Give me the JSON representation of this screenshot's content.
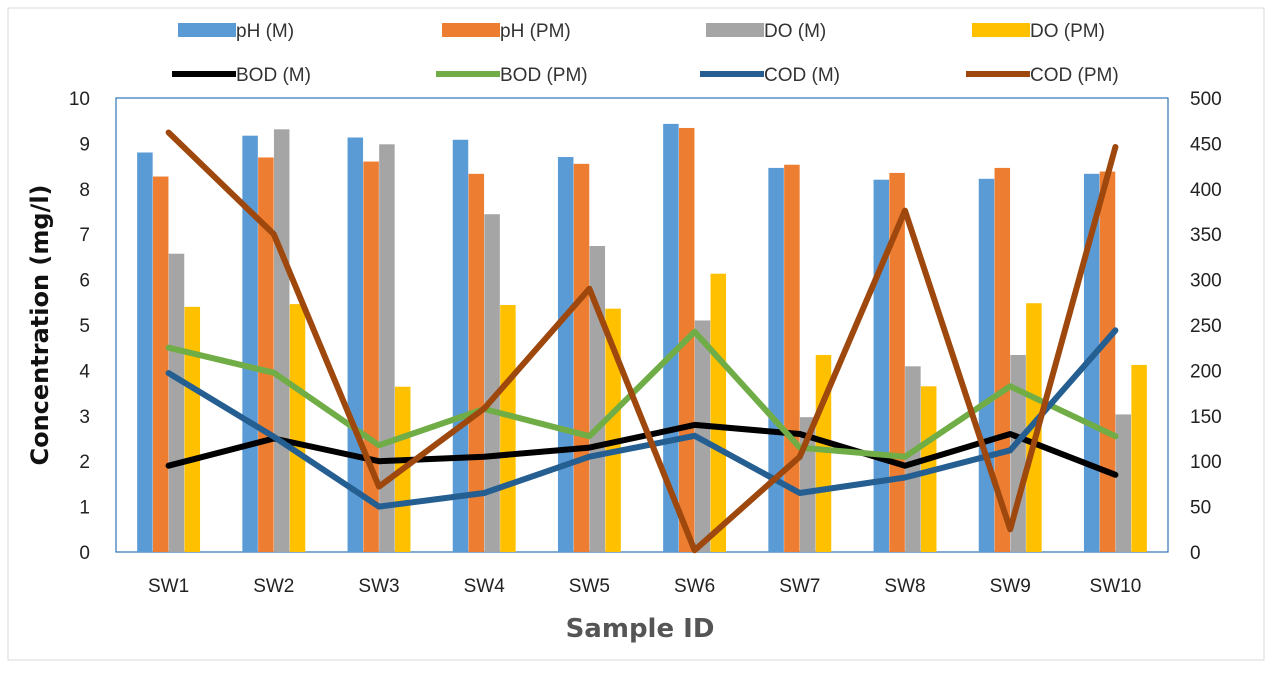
{
  "chart_data": {
    "type": "bar",
    "categories": [
      "SW1",
      "SW2",
      "SW3",
      "SW4",
      "SW5",
      "SW6",
      "SW7",
      "SW8",
      "SW9",
      "SW10"
    ],
    "xlabel": "Sample ID",
    "ylabel": "Concentration (mg/l)",
    "ylim": [
      0,
      10
    ],
    "y_ticks": [
      "0",
      "1",
      "2",
      "3",
      "4",
      "5",
      "6",
      "7",
      "8",
      "9",
      "10"
    ],
    "y2lim": [
      0,
      500
    ],
    "y2_ticks": [
      "0",
      "50",
      "100",
      "150",
      "200",
      "250",
      "300",
      "350",
      "400",
      "450",
      "500"
    ],
    "grid": false,
    "legend_position": "top",
    "bar_series": [
      {
        "name": "pH (M)",
        "color": "#5b9bd5",
        "values": [
          8.8,
          9.17,
          9.13,
          9.08,
          8.7,
          9.43,
          8.46,
          8.2,
          8.22,
          8.33
        ]
      },
      {
        "name": "pH (PM)",
        "color": "#ed7d31",
        "values": [
          8.27,
          8.69,
          8.6,
          8.33,
          8.55,
          9.34,
          8.53,
          8.35,
          8.46,
          8.38
        ]
      },
      {
        "name": "DO (M)",
        "color": "#a5a5a5",
        "values": [
          6.57,
          9.31,
          8.98,
          7.44,
          6.74,
          5.1,
          2.97,
          4.09,
          4.34,
          3.03
        ]
      },
      {
        "name": "DO (PM)",
        "color": "#ffc000",
        "values": [
          5.4,
          5.46,
          3.64,
          5.44,
          5.36,
          6.13,
          4.34,
          3.65,
          5.48,
          4.12
        ]
      }
    ],
    "line_series": [
      {
        "name": "BOD (M)",
        "color": "#000000",
        "axis": "primary",
        "values": [
          1.9,
          2.5,
          2.0,
          2.1,
          2.3,
          2.8,
          2.6,
          1.9,
          2.6,
          1.7
        ]
      },
      {
        "name": "BOD (PM)",
        "color": "#70ad47",
        "axis": "primary",
        "values": [
          4.5,
          3.95,
          2.35,
          3.15,
          2.55,
          4.85,
          2.3,
          2.1,
          3.65,
          2.55
        ]
      },
      {
        "name": "COD (M)",
        "color": "#255e91",
        "axis": "secondary",
        "values": [
          197,
          127,
          50,
          65,
          105,
          128,
          65,
          82,
          112,
          244
        ]
      },
      {
        "name": "COD (PM)",
        "color": "#9e480e",
        "axis": "secondary",
        "values": [
          462,
          350,
          72,
          158,
          290,
          2,
          105,
          376,
          25,
          446
        ]
      }
    ]
  }
}
